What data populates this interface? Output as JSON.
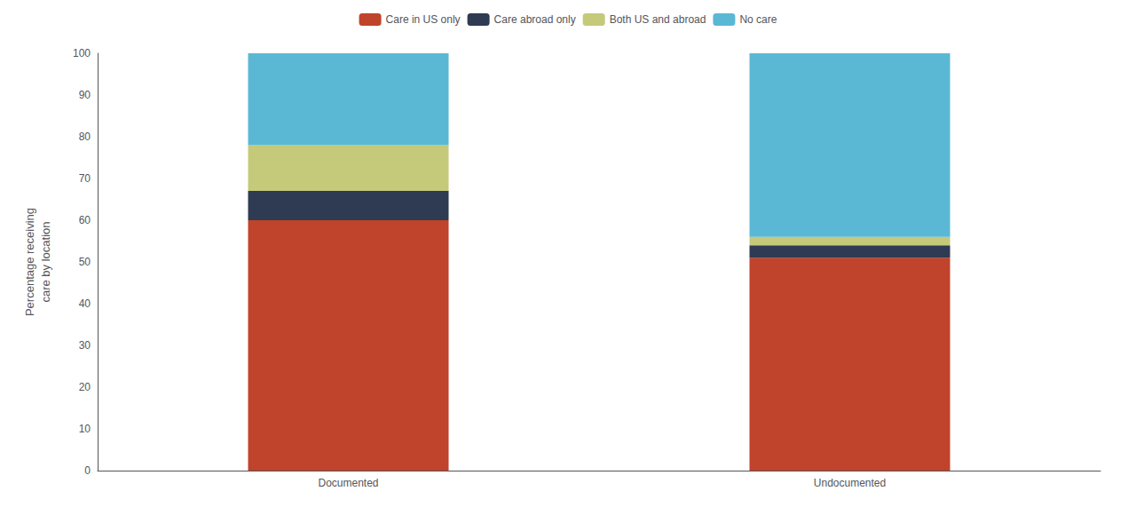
{
  "chart_data": {
    "type": "bar",
    "stacked": true,
    "categories": [
      "Documented",
      "Undocumented"
    ],
    "series": [
      {
        "name": "Care in US only",
        "color": "#C0432B",
        "values": [
          60,
          51
        ]
      },
      {
        "name": "Care abroad only",
        "color": "#2E3B52",
        "values": [
          7,
          3
        ]
      },
      {
        "name": "Both US and abroad",
        "color": "#C5C97A",
        "values": [
          11,
          2
        ]
      },
      {
        "name": "No care",
        "color": "#5BB8D4",
        "values": [
          22,
          44
        ]
      }
    ],
    "ylabel": "Percentage receiving\ncare by location",
    "ylim": [
      0,
      100
    ],
    "yticks": [
      0,
      10,
      20,
      30,
      40,
      50,
      60,
      70,
      80,
      90,
      100
    ],
    "grid": false,
    "legend": "top"
  }
}
